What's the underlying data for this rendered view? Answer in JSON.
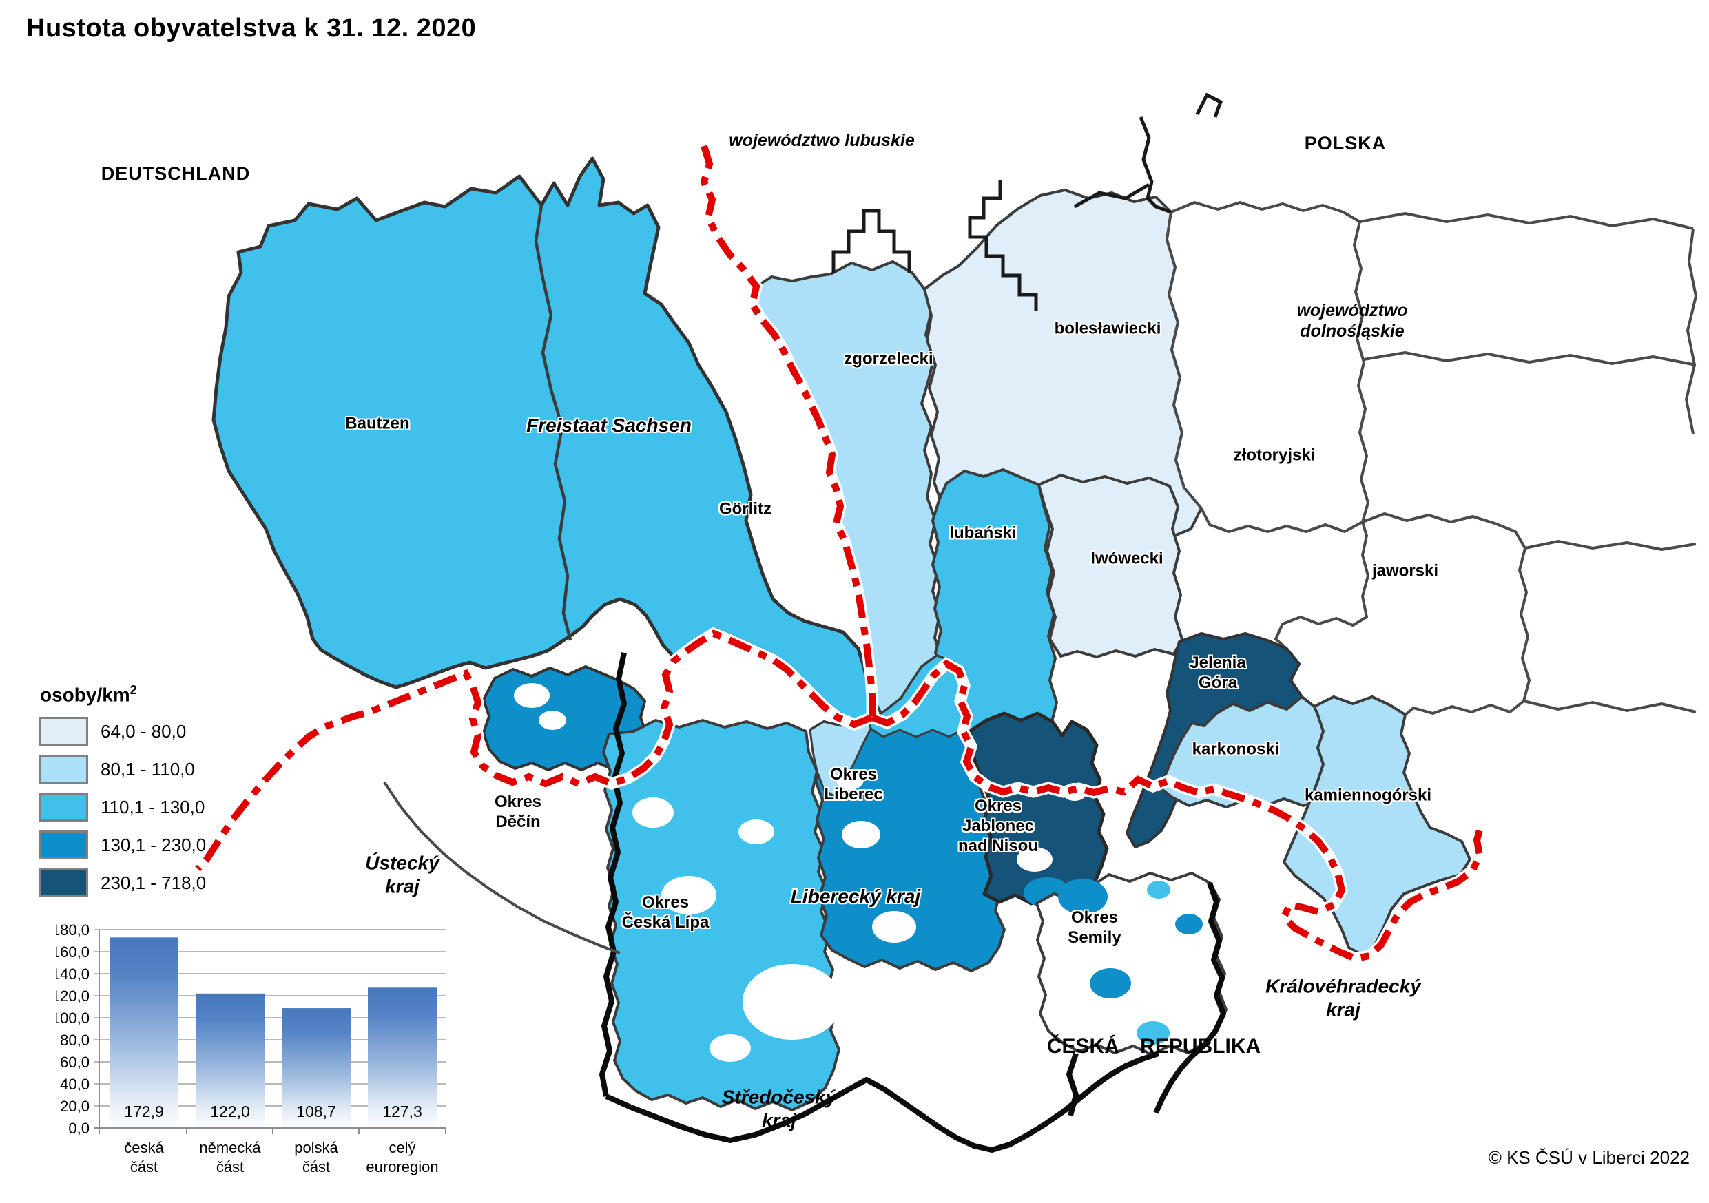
{
  "title": "Hustota obyvatelstva k 31. 12. 2020",
  "copyright": "© KS ČSÚ v Liberci 2022",
  "legend": {
    "title": "osoby/km",
    "title_sup": "2",
    "swatch_border": "#808080",
    "classes": [
      {
        "range": "64,0 - 80,0",
        "color": "#DFEEF9"
      },
      {
        "range": "80,1 - 110,0",
        "color": "#ABE0F8"
      },
      {
        "range": "110,1 - 130,0",
        "color": "#3FC1EC"
      },
      {
        "range": "130,1 - 230,0",
        "color": "#0E8FC9"
      },
      {
        "range": "230,1 - 718,0",
        "color": "#155379"
      }
    ]
  },
  "map": {
    "border_colors": {
      "state_border": "#E10000",
      "district": "#3C3C3C",
      "kraj": "#0B0B0B",
      "outside": "#4A4A4A"
    },
    "countries": {
      "deutschland": "DEUTSCHLAND",
      "polska": "POLSKA",
      "ceska_republika": "ČESKÁ REPUBLIKA"
    },
    "provinces": {
      "woj_lubuskie": "województwo lubuskie",
      "woj_dolnoslaskie_l1": "województwo",
      "woj_dolnoslaskie_l2": "dolnośląskie",
      "freistaat_sachsen": "Freistaat Sachsen",
      "liberecky_kraj": "Liberecký kraj",
      "ustecky_l1": "Ústecký",
      "ustecky_l2": "kraj",
      "stredocesky_l1": "Středočeský",
      "stredocesky_l2": "kraj",
      "kralovehradecky_l1": "Královéhradecký",
      "kralovehradecky_l2": "kraj"
    },
    "districts": {
      "bautzen": "Bautzen",
      "gorlitz": "Görlitz",
      "zgorzelecki": "zgorzelecki",
      "boleslawiecki": "bolesławiecki",
      "lubanski": "lubański",
      "lwowecki": "lwówecki",
      "zlotoryjski": "złotoryjski",
      "jaworski": "jaworski",
      "jelenia_gora_l1": "Jelenia",
      "jelenia_gora_l2": "Góra",
      "karkonoski": "karkonoski",
      "kamiennogorski": "kamiennogórski",
      "okres_decin_l1": "Okres",
      "okres_decin_l2": "Děčín",
      "okres_ceska_lipa_l1": "Okres",
      "okres_ceska_lipa_l2": "Česká Lípa",
      "okres_liberec_l1": "Okres",
      "okres_liberec_l2": "Liberec",
      "okres_jablonec_l1": "Okres",
      "okres_jablonec_l2": "Jablonec",
      "okres_jablonec_l3": "nad Nisou",
      "okres_semily_l1": "Okres",
      "okres_semily_l2": "Semily"
    }
  },
  "chart_data": {
    "type": "bar",
    "title": "",
    "xlabel": "",
    "ylabel": "",
    "categories": [
      [
        "česká",
        "část"
      ],
      [
        "německá",
        "část"
      ],
      [
        "polská",
        "část"
      ],
      [
        "celý",
        "euroregion"
      ]
    ],
    "values": [
      172.9,
      122.0,
      108.7,
      127.3
    ],
    "value_labels": [
      "172,9",
      "122,0",
      "108,7",
      "127,3"
    ],
    "ylim": [
      0,
      180
    ],
    "ytick_step": 20,
    "ytick_labels": [
      "0,0",
      "20,0",
      "40,0",
      "60,0",
      "80,0",
      "100,0",
      "120,0",
      "140,0",
      "160,0",
      "180,0"
    ],
    "grid": true,
    "legend_position": "none",
    "bar_top_color": "#4677BC",
    "bar_bottom_color": "#FFFFFF"
  }
}
